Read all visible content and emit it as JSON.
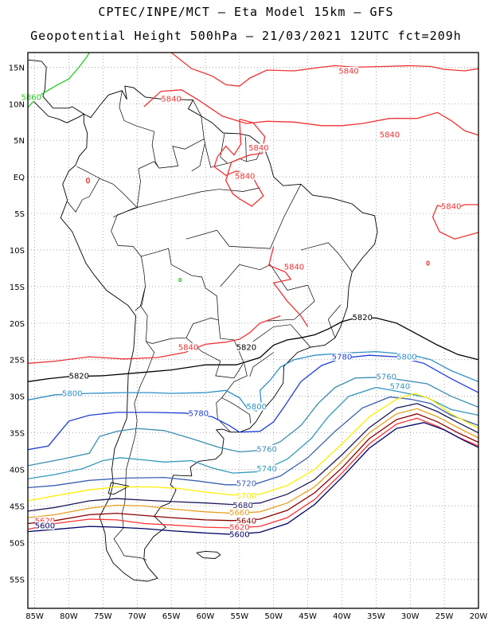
{
  "header": {
    "line1": "CPTEC/INPE/MCT –  Eta Model 15km – GFS",
    "line2": "Geopotential Height 500hPa – 21/03/2021 12UTC fct=209h"
  },
  "axes": {
    "lon_labels": [
      "85W",
      "80W",
      "75W",
      "70W",
      "65W",
      "60W",
      "55W",
      "50W",
      "45W",
      "40W",
      "35W",
      "30W",
      "25W",
      "20W"
    ],
    "lat_labels": [
      "15N",
      "10N",
      "5N",
      "EQ",
      "5S",
      "10S",
      "15S",
      "20S",
      "25S",
      "30S",
      "35S",
      "40S",
      "45S",
      "50S",
      "55S"
    ],
    "lon_range": [
      -86,
      -20
    ],
    "lat_range": [
      17,
      -59
    ],
    "grid": "dotted"
  },
  "contour_colors": {
    "5580": "#000033",
    "5600": "#000066",
    "5620": "#ff3333",
    "5640": "#8b0000",
    "5660": "#e6a020",
    "5680": "#1a1a5a",
    "5700": "#ffee00",
    "5720": "#3a5fb0",
    "5740": "#3399bb",
    "5760": "#3c8cb0",
    "5780": "#1f3fd6",
    "5800": "#2e8fc9",
    "5820": "#000000",
    "5840": "#ee3333",
    "5860": "#22cc22"
  },
  "contour_labels": [
    {
      "text": "5860",
      "lon": -85.5,
      "lat": 10.9,
      "level": "5860"
    },
    {
      "text": "5840",
      "lon": -65,
      "lat": 10.7,
      "level": "5840"
    },
    {
      "text": "5840",
      "lon": -39,
      "lat": 14.5,
      "level": "5840"
    },
    {
      "text": "5840",
      "lon": -33,
      "lat": 5.8,
      "level": "5840"
    },
    {
      "text": "5840",
      "lon": -52.2,
      "lat": 4.0,
      "level": "5840"
    },
    {
      "text": "5840",
      "lon": -54.2,
      "lat": 0.1,
      "level": "5840"
    },
    {
      "text": "5840",
      "lon": -24,
      "lat": -4.0,
      "level": "5840"
    },
    {
      "text": "5840",
      "lon": -47,
      "lat": -12.3,
      "level": "5840"
    },
    {
      "text": "5840",
      "lon": -62.5,
      "lat": -23.3,
      "level": "5840"
    },
    {
      "text": "5820",
      "lon": -37,
      "lat": -19.2,
      "level": "5820"
    },
    {
      "text": "5820",
      "lon": -54,
      "lat": -23.3,
      "level": "5820"
    },
    {
      "text": "5820",
      "lon": -78.5,
      "lat": -27.2,
      "level": "5820"
    },
    {
      "text": "5800",
      "lon": -30.5,
      "lat": -24.6,
      "level": "5800"
    },
    {
      "text": "5800",
      "lon": -79.5,
      "lat": -29.6,
      "level": "5800"
    },
    {
      "text": "5800",
      "lon": -52.5,
      "lat": -31.4,
      "level": "5800"
    },
    {
      "text": "5780",
      "lon": -40,
      "lat": -24.6,
      "level": "5780"
    },
    {
      "text": "5780",
      "lon": -61,
      "lat": -32.3,
      "level": "5780"
    },
    {
      "text": "5760",
      "lon": -33.5,
      "lat": -27.3,
      "level": "5760"
    },
    {
      "text": "5760",
      "lon": -51,
      "lat": -37.2,
      "level": "5760"
    },
    {
      "text": "5740",
      "lon": -31.5,
      "lat": -28.6,
      "level": "5740"
    },
    {
      "text": "5740",
      "lon": -51,
      "lat": -39.9,
      "level": "5740"
    },
    {
      "text": "5720",
      "lon": -54,
      "lat": -41.9,
      "level": "5720"
    },
    {
      "text": "5700",
      "lon": -54,
      "lat": -43.6,
      "level": "5700"
    },
    {
      "text": "5680",
      "lon": -54.5,
      "lat": -44.9,
      "level": "5680"
    },
    {
      "text": "5660",
      "lon": -55,
      "lat": -45.9,
      "level": "5660"
    },
    {
      "text": "5640",
      "lon": -54,
      "lat": -47.0,
      "level": "5640"
    },
    {
      "text": "5620",
      "lon": -83.5,
      "lat": -47.0,
      "level": "5620"
    },
    {
      "text": "5620",
      "lon": -55,
      "lat": -47.9,
      "level": "5620"
    },
    {
      "text": "5600",
      "lon": -83.5,
      "lat": -47.7,
      "level": "5600"
    },
    {
      "text": "5600",
      "lon": -55,
      "lat": -48.9,
      "level": "5600"
    }
  ]
}
